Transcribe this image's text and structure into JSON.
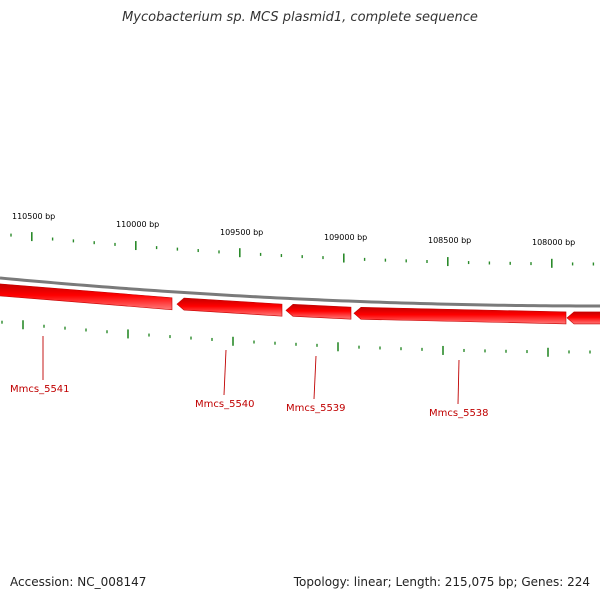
{
  "title": "Mycobacterium sp. MCS plasmid1, complete sequence",
  "footer": {
    "accession": "Accession: NC_008147",
    "summary": "Topology: linear; Length: 215,075 bp; Genes: 224"
  },
  "colors": {
    "backbone": "#7a7a7a",
    "gene_fill": "#ff0000",
    "gene_dark": "#c40000",
    "gene_light": "#ff7a7a",
    "tick": "#2a8a2a",
    "gene_label": "#c00000"
  },
  "scale_labels": [
    "110500 bp",
    "110000 bp",
    "109500 bp",
    "109000 bp",
    "108500 bp",
    "108000 bp"
  ],
  "genes": [
    {
      "label": "Mmcs_5541"
    },
    {
      "label": "Mmcs_5540"
    },
    {
      "label": "Mmcs_5539"
    },
    {
      "label": "Mmcs_5538"
    }
  ]
}
